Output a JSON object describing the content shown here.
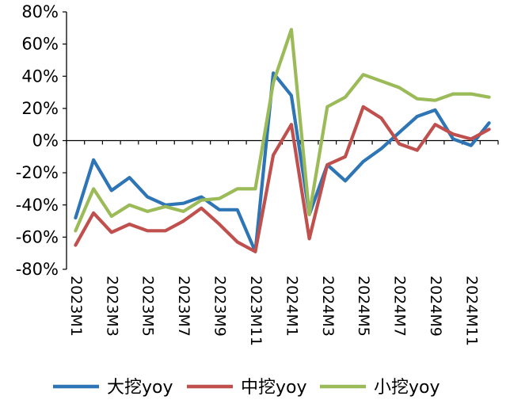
{
  "chart_data": {
    "type": "line",
    "title": "",
    "xlabel": "",
    "ylabel": "",
    "x": [
      "2023M1",
      "2023M2",
      "2023M3",
      "2023M4",
      "2023M5",
      "2023M6",
      "2023M7",
      "2023M8",
      "2023M9",
      "2023M10",
      "2023M11",
      "2023M12",
      "2024M1",
      "2024M2",
      "2024M3",
      "2024M4",
      "2024M5",
      "2024M6",
      "2024M7",
      "2024M8",
      "2024M9",
      "2024M10",
      "2024M11",
      "2024M12"
    ],
    "x_tick_labels": [
      "2023M1",
      "2023M3",
      "2023M5",
      "2023M7",
      "2023M9",
      "2023M11",
      "2024M1",
      "2024M3",
      "2024M5",
      "2024M7",
      "2024M9",
      "2024M11"
    ],
    "ylim": [
      -0.8,
      0.8
    ],
    "y_ticks": [
      -0.8,
      -0.6,
      -0.4,
      -0.2,
      0,
      0.2,
      0.4,
      0.6,
      0.8
    ],
    "y_tick_labels": [
      "-80%",
      "-60%",
      "-40%",
      "-20%",
      "0%",
      "20%",
      "40%",
      "60%",
      "80%"
    ],
    "grid": false,
    "legend_position": "bottom",
    "series": [
      {
        "name": "大挖yoy",
        "color": "#2e75b6",
        "values": [
          -0.48,
          -0.12,
          -0.31,
          -0.23,
          -0.35,
          -0.4,
          -0.39,
          -0.35,
          -0.43,
          -0.43,
          -0.69,
          0.42,
          0.28,
          -0.46,
          -0.15,
          -0.25,
          -0.13,
          -0.05,
          0.05,
          0.15,
          0.19,
          0.01,
          -0.03,
          0.11
        ]
      },
      {
        "name": "中挖yoy",
        "color": "#c0504d",
        "values": [
          -0.65,
          -0.45,
          -0.57,
          -0.52,
          -0.56,
          -0.56,
          -0.5,
          -0.42,
          -0.52,
          -0.63,
          -0.69,
          -0.09,
          0.1,
          -0.61,
          -0.15,
          -0.1,
          0.21,
          0.14,
          -0.02,
          -0.06,
          0.1,
          0.04,
          0.01,
          0.07
        ]
      },
      {
        "name": "小挖yoy",
        "color": "#9bbb59",
        "values": [
          -0.56,
          -0.3,
          -0.47,
          -0.4,
          -0.44,
          -0.41,
          -0.44,
          -0.37,
          -0.36,
          -0.3,
          -0.3,
          0.36,
          0.69,
          -0.46,
          0.21,
          0.27,
          0.41,
          0.37,
          0.33,
          0.26,
          0.25,
          0.29,
          0.29,
          0.27
        ]
      }
    ]
  }
}
